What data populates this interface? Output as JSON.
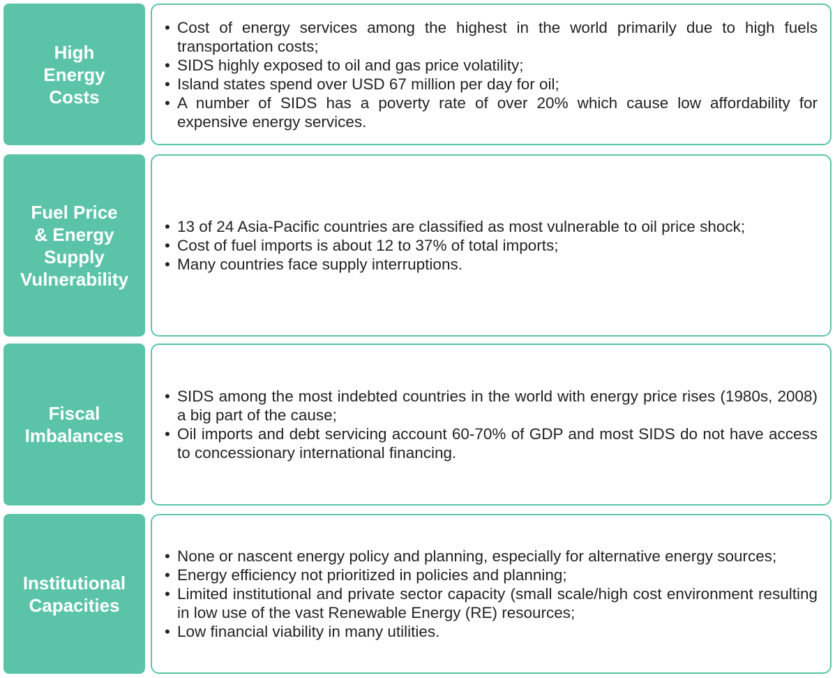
{
  "rows": [
    {
      "label": [
        "High",
        "Energy",
        "Costs"
      ],
      "items": [
        "Cost of energy services among the highest in the world primarily due to high fuels transportation costs;",
        "SIDS highly exposed to oil and gas price volatility;",
        "Island states spend over USD 67 million per day for oil;",
        "A number of SIDS has a poverty rate of over 20% which cause low affordability for expensive energy services."
      ]
    },
    {
      "label": [
        "Fuel Price",
        "& Energy",
        "Supply",
        "Vulnerability"
      ],
      "items": [
        "13 of 24 Asia-Pacific countries are classified as most vulnerable to oil price shock;",
        "Cost of fuel imports is about 12 to 37% of total imports;",
        "Many countries face supply interruptions."
      ]
    },
    {
      "label": [
        "Fiscal",
        "Imbalances"
      ],
      "items": [
        "SIDS among the most indebted countries in the world with energy price rises (1980s, 2008) a big part of the cause;",
        "Oil imports and debt servicing account 60-70% of GDP and most SIDS do not have access to concessionary international financing."
      ]
    },
    {
      "label": [
        "Institutional",
        "Capacities"
      ],
      "items": [
        "None or nascent energy policy and planning, especially for alternative energy sources;",
        "Energy efficiency not prioritized in policies and planning;",
        "Limited institutional and private sector capacity (small scale/high cost environment resulting in low use of the vast Renewable Energy (RE) resources;",
        "Low financial viability in many utilities."
      ]
    }
  ]
}
